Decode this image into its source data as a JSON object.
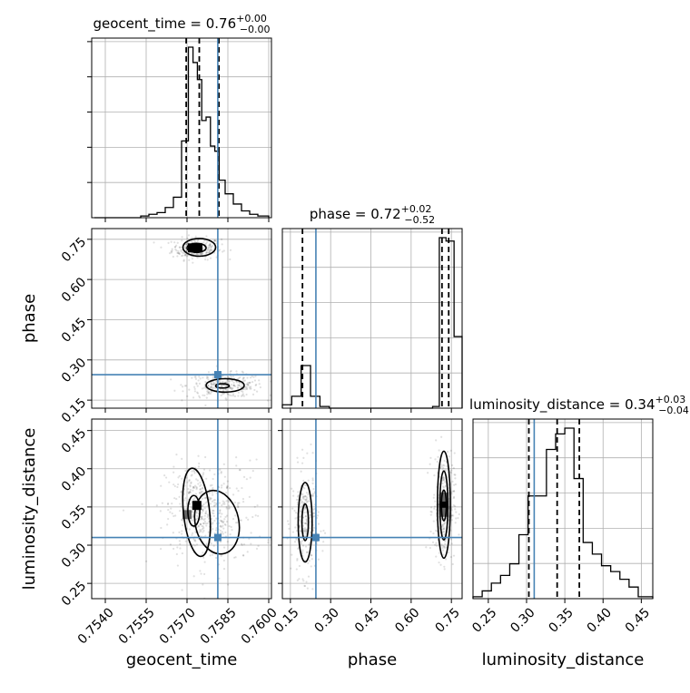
{
  "chart_data": {
    "type": "corner",
    "parameters": [
      {
        "name": "geocent_time",
        "axis_label": "geocent_time",
        "title": "geocent_time = 0.76",
        "title_sup": "+0.00",
        "title_sub": "−0.00",
        "range": [
          0.7535,
          0.7601
        ],
        "ticks": [
          0.754,
          0.7555,
          0.757,
          0.7585,
          0.76
        ],
        "tick_labels": [
          "0.7540",
          "0.7555",
          "0.7570",
          "0.7585",
          "0.7600"
        ],
        "quantiles": [
          0.75697,
          0.75745,
          0.75817
        ],
        "truth": 0.75813,
        "hist": {
          "edges": [
            0.7536,
            0.75688,
            0.7572,
            0.75752,
            0.75784,
            0.75816,
            0.7584,
            0.76
          ],
          "bins": [
            {
              "x0": 0.7536,
              "x1": 0.7553,
              "v": 0.0
            },
            {
              "x0": 0.7553,
              "x1": 0.7556,
              "v": 0.01
            },
            {
              "x0": 0.7556,
              "x1": 0.7559,
              "v": 0.02
            },
            {
              "x0": 0.7559,
              "x1": 0.7562,
              "v": 0.03
            },
            {
              "x0": 0.7562,
              "x1": 0.7565,
              "v": 0.06
            },
            {
              "x0": 0.7565,
              "x1": 0.7568,
              "v": 0.12
            },
            {
              "x0": 0.7568,
              "x1": 0.75705,
              "v": 0.45
            },
            {
              "x0": 0.75705,
              "x1": 0.75722,
              "v": 1.0
            },
            {
              "x0": 0.75722,
              "x1": 0.75738,
              "v": 0.91
            },
            {
              "x0": 0.75738,
              "x1": 0.75754,
              "v": 0.81
            },
            {
              "x0": 0.75754,
              "x1": 0.7577,
              "v": 0.57
            },
            {
              "x0": 0.7577,
              "x1": 0.75786,
              "v": 0.59
            },
            {
              "x0": 0.75786,
              "x1": 0.75802,
              "v": 0.42
            },
            {
              "x0": 0.75802,
              "x1": 0.75818,
              "v": 0.39
            },
            {
              "x0": 0.75818,
              "x1": 0.7584,
              "v": 0.22
            },
            {
              "x0": 0.7584,
              "x1": 0.7587,
              "v": 0.14
            },
            {
              "x0": 0.7587,
              "x1": 0.759,
              "v": 0.08
            },
            {
              "x0": 0.759,
              "x1": 0.7593,
              "v": 0.04
            },
            {
              "x0": 0.7593,
              "x1": 0.7596,
              "v": 0.02
            },
            {
              "x0": 0.7596,
              "x1": 0.76,
              "v": 0.01
            }
          ]
        }
      },
      {
        "name": "phase",
        "axis_label": "phase",
        "title": "phase = 0.72",
        "title_sup": "+0.02",
        "title_sub": "−0.52",
        "range": [
          0.12,
          0.79
        ],
        "ticks": [
          0.15,
          0.3,
          0.45,
          0.6,
          0.75
        ],
        "tick_labels": [
          "0.15",
          "0.30",
          "0.45",
          "0.60",
          "0.75"
        ],
        "quantiles": [
          0.195,
          0.715,
          0.74
        ],
        "truth": 0.245,
        "hist": {
          "bins": [
            {
              "x0": 0.12,
              "x1": 0.155,
              "v": 0.02
            },
            {
              "x0": 0.155,
              "x1": 0.19,
              "v": 0.07
            },
            {
              "x0": 0.19,
              "x1": 0.225,
              "v": 0.25
            },
            {
              "x0": 0.225,
              "x1": 0.26,
              "v": 0.07
            },
            {
              "x0": 0.26,
              "x1": 0.295,
              "v": 0.01
            },
            {
              "x0": 0.295,
              "x1": 0.68,
              "v": 0.0
            },
            {
              "x0": 0.68,
              "x1": 0.705,
              "v": 0.01
            },
            {
              "x0": 0.705,
              "x1": 0.73,
              "v": 1.0
            },
            {
              "x0": 0.73,
              "x1": 0.76,
              "v": 0.98
            },
            {
              "x0": 0.76,
              "x1": 0.79,
              "v": 0.42
            }
          ]
        }
      },
      {
        "name": "luminosity_distance",
        "axis_label": "luminosity_distance",
        "title": "luminosity_distance = 0.34",
        "title_sup": "+0.03",
        "title_sub": "−0.04",
        "range": [
          0.23,
          0.465
        ],
        "ticks": [
          0.25,
          0.3,
          0.35,
          0.4,
          0.45
        ],
        "tick_labels": [
          "0.25",
          "0.30",
          "0.35",
          "0.40",
          "0.45"
        ],
        "quantiles": [
          0.303,
          0.34,
          0.369
        ],
        "truth": 0.31,
        "hist": {
          "bins": [
            {
              "x0": 0.23,
              "x1": 0.242,
              "v": 0.01
            },
            {
              "x0": 0.242,
              "x1": 0.254,
              "v": 0.04
            },
            {
              "x0": 0.254,
              "x1": 0.266,
              "v": 0.08
            },
            {
              "x0": 0.266,
              "x1": 0.278,
              "v": 0.12
            },
            {
              "x0": 0.278,
              "x1": 0.29,
              "v": 0.18
            },
            {
              "x0": 0.29,
              "x1": 0.302,
              "v": 0.33
            },
            {
              "x0": 0.302,
              "x1": 0.314,
              "v": 0.53
            },
            {
              "x0": 0.314,
              "x1": 0.326,
              "v": 0.53
            },
            {
              "x0": 0.326,
              "x1": 0.338,
              "v": 0.77
            },
            {
              "x0": 0.338,
              "x1": 0.35,
              "v": 0.85
            },
            {
              "x0": 0.35,
              "x1": 0.362,
              "v": 0.88
            },
            {
              "x0": 0.362,
              "x1": 0.374,
              "v": 0.62
            },
            {
              "x0": 0.374,
              "x1": 0.386,
              "v": 0.29
            },
            {
              "x0": 0.386,
              "x1": 0.398,
              "v": 0.23
            },
            {
              "x0": 0.398,
              "x1": 0.41,
              "v": 0.17
            },
            {
              "x0": 0.41,
              "x1": 0.422,
              "v": 0.14
            },
            {
              "x0": 0.422,
              "x1": 0.434,
              "v": 0.1
            },
            {
              "x0": 0.434,
              "x1": 0.446,
              "v": 0.06
            },
            {
              "x0": 0.446,
              "x1": 0.465,
              "v": 0.01
            }
          ]
        }
      }
    ],
    "pairs": [
      {
        "x_param": "geocent_time",
        "y_param": "phase",
        "blobs": [
          {
            "cx": 0.75735,
            "cy": 0.715,
            "sx": 0.00045,
            "sy": 0.02,
            "n": 260,
            "angle": 0
          },
          {
            "cx": 0.7584,
            "cy": 0.205,
            "sx": 0.0007,
            "sy": 0.022,
            "n": 300,
            "angle": 0
          }
        ],
        "contours": [
          {
            "cx": 0.75735,
            "cy": 0.717,
            "rx": 0.00012,
            "ry": 0.008,
            "angle": 0
          },
          {
            "cx": 0.75735,
            "cy": 0.718,
            "rx": 0.00035,
            "ry": 0.017,
            "angle": 0
          },
          {
            "cx": 0.75745,
            "cy": 0.72,
            "rx": 0.0006,
            "ry": 0.033,
            "angle": 0
          },
          {
            "cx": 0.7583,
            "cy": 0.203,
            "rx": 0.00025,
            "ry": 0.008,
            "angle": 0
          },
          {
            "cx": 0.7584,
            "cy": 0.205,
            "rx": 0.0007,
            "ry": 0.025,
            "angle": 0
          }
        ],
        "dense_squares": [
          {
            "cx": 0.7572,
            "cy": 0.718,
            "level": 1.0
          },
          {
            "cx": 0.7574,
            "cy": 0.718,
            "level": 1.0
          }
        ]
      },
      {
        "x_param": "geocent_time",
        "y_param": "luminosity_distance",
        "blobs": [
          {
            "cx": 0.75735,
            "cy": 0.345,
            "sx": 0.0005,
            "sy": 0.03,
            "n": 260,
            "angle": 0
          },
          {
            "cx": 0.75805,
            "cy": 0.34,
            "sx": 0.0009,
            "sy": 0.035,
            "n": 260,
            "angle": 0
          }
        ],
        "contours": [
          {
            "cx": 0.75725,
            "cy": 0.345,
            "rx": 0.00022,
            "ry": 0.02,
            "angle": 0
          },
          {
            "cx": 0.75735,
            "cy": 0.343,
            "rx": 0.00048,
            "ry": 0.058,
            "angle": -6
          },
          {
            "cx": 0.7581,
            "cy": 0.33,
            "rx": 0.0008,
            "ry": 0.042,
            "angle": -12
          }
        ],
        "dense_squares": [
          {
            "cx": 0.75736,
            "cy": 0.352,
            "level": 1.0
          },
          {
            "cx": 0.757,
            "cy": 0.34,
            "level": 0.5
          }
        ]
      },
      {
        "x_param": "phase",
        "y_param": "luminosity_distance",
        "blobs": [
          {
            "cx": 0.205,
            "cy": 0.33,
            "sx": 0.025,
            "sy": 0.035,
            "n": 260,
            "angle": 0
          },
          {
            "cx": 0.722,
            "cy": 0.35,
            "sx": 0.02,
            "sy": 0.035,
            "n": 300,
            "angle": 0
          }
        ],
        "contours": [
          {
            "cx": 0.205,
            "cy": 0.33,
            "rx": 0.012,
            "ry": 0.024,
            "angle": 0
          },
          {
            "cx": 0.205,
            "cy": 0.33,
            "rx": 0.026,
            "ry": 0.052,
            "angle": 0
          },
          {
            "cx": 0.722,
            "cy": 0.352,
            "rx": 0.009,
            "ry": 0.02,
            "angle": 0
          },
          {
            "cx": 0.722,
            "cy": 0.352,
            "rx": 0.015,
            "ry": 0.045,
            "angle": 0
          },
          {
            "cx": 0.722,
            "cy": 0.353,
            "rx": 0.024,
            "ry": 0.07,
            "angle": 0
          }
        ],
        "dense_squares": [
          {
            "cx": 0.723,
            "cy": 0.353,
            "level": 1.0
          },
          {
            "cx": 0.723,
            "cy": 0.343,
            "level": 0.5
          },
          {
            "cx": 0.723,
            "cy": 0.363,
            "level": 0.5
          }
        ]
      }
    ],
    "colors": {
      "truth": "#4682b4",
      "line": "#000000",
      "grid": "#b0b0b0"
    },
    "grid": true
  }
}
